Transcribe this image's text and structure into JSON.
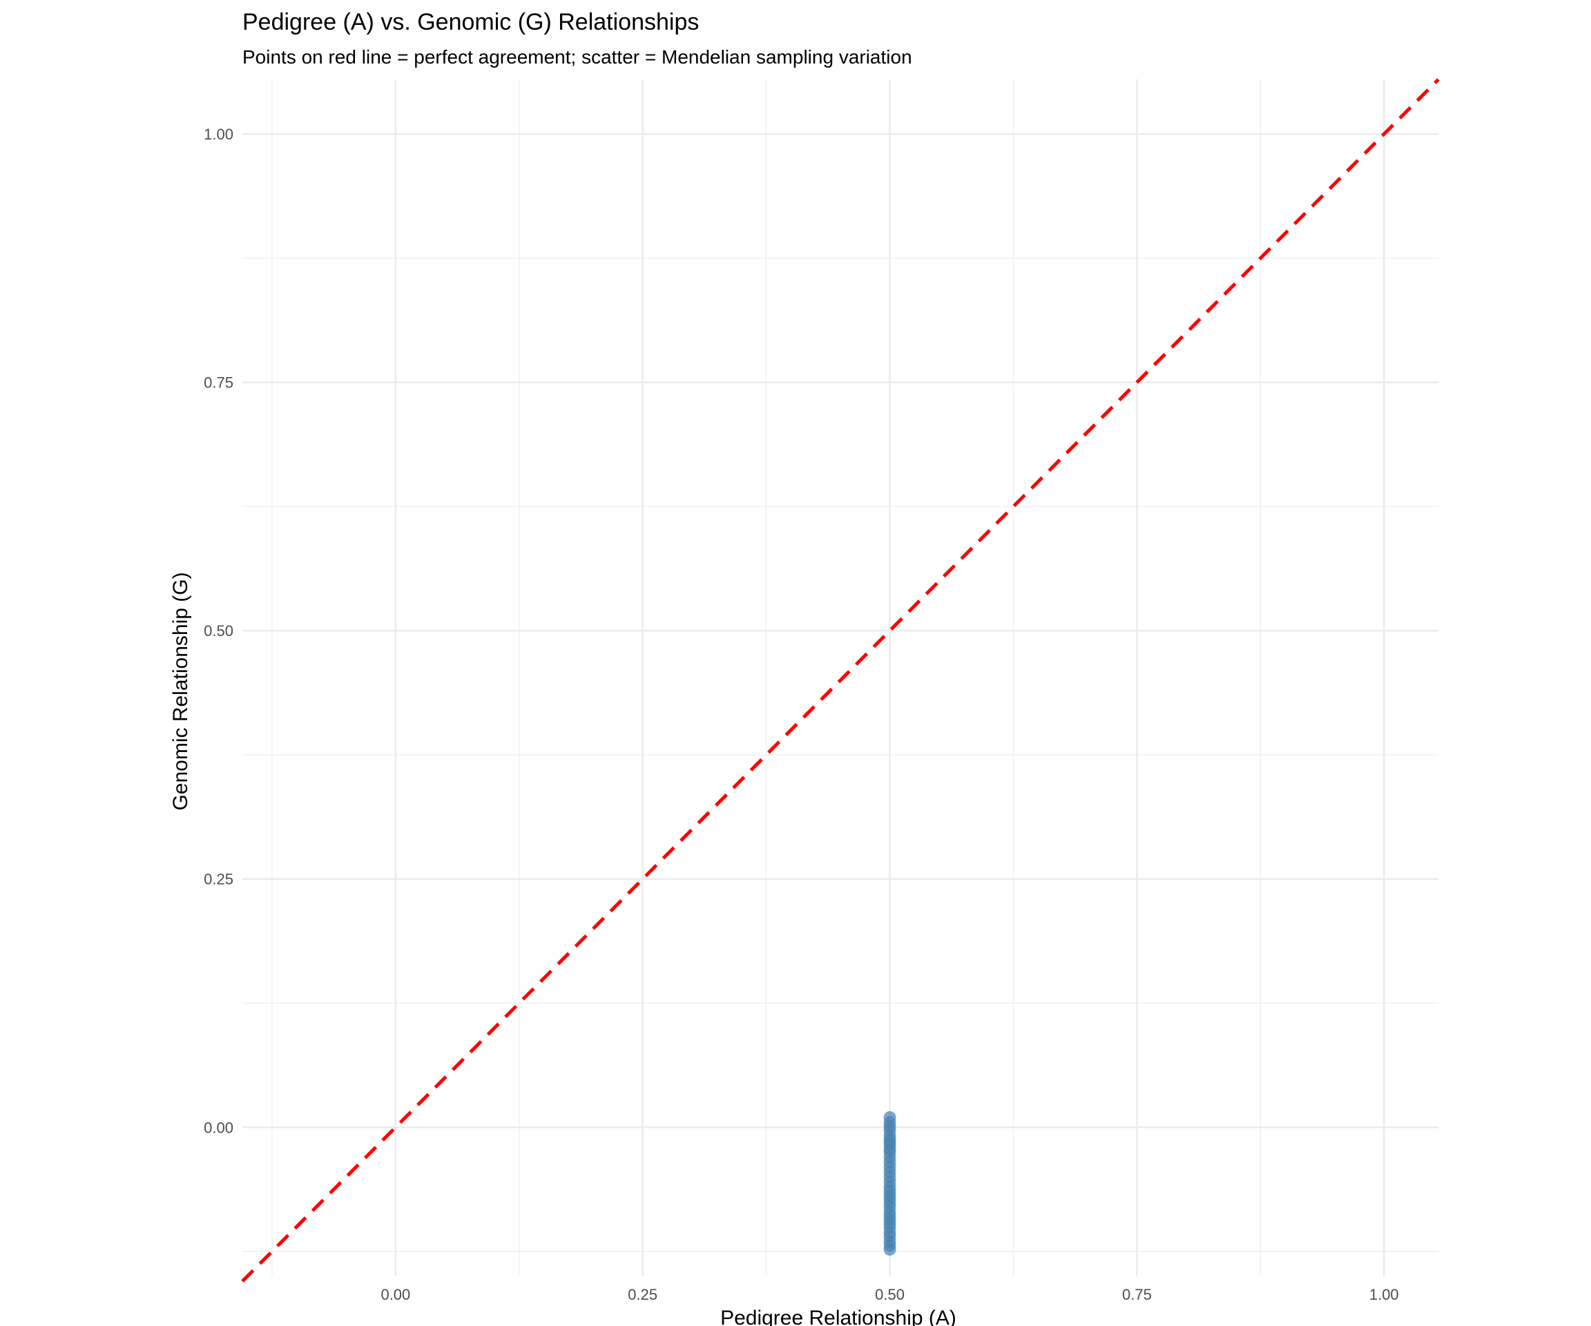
{
  "chart_data": {
    "type": "scatter",
    "title": "Pedigree (A) vs. Genomic (G) Relationships",
    "subtitle": "Points on red line = perfect agreement; scatter = Mendelian sampling variation",
    "xlabel": "Pedigree Relationship (A)",
    "ylabel": "Genomic Relationship (G)",
    "xlim": [
      -0.155,
      1.055
    ],
    "ylim": [
      -0.15,
      1.055
    ],
    "x_ticks": [
      0.0,
      0.25,
      0.5,
      0.75,
      1.0
    ],
    "x_tick_labels": [
      "0.00",
      "0.25",
      "0.50",
      "0.75",
      "1.00"
    ],
    "y_ticks": [
      0.0,
      0.25,
      0.5,
      0.75,
      1.0
    ],
    "y_tick_labels": [
      "0.00",
      "0.25",
      "0.50",
      "0.75",
      "1.00"
    ],
    "grid": true,
    "point_color": "#4682B4",
    "reference_line": {
      "slope": 1,
      "intercept": 0,
      "color": "#FF0000",
      "style": "dashed"
    },
    "points": [
      {
        "x": 0.5,
        "y": 0.01
      },
      {
        "x": 0.5,
        "y": 0.005
      },
      {
        "x": 0.5,
        "y": 0.001
      },
      {
        "x": 0.5,
        "y": -0.003
      },
      {
        "x": 0.5,
        "y": -0.008
      },
      {
        "x": 0.5,
        "y": -0.012
      },
      {
        "x": 0.5,
        "y": -0.015
      },
      {
        "x": 0.5,
        "y": -0.018
      },
      {
        "x": 0.5,
        "y": -0.022
      },
      {
        "x": 0.5,
        "y": -0.025
      },
      {
        "x": 0.5,
        "y": -0.03
      },
      {
        "x": 0.5,
        "y": -0.035
      },
      {
        "x": 0.5,
        "y": -0.04
      },
      {
        "x": 0.5,
        "y": -0.045
      },
      {
        "x": 0.5,
        "y": -0.05
      },
      {
        "x": 0.5,
        "y": -0.055
      },
      {
        "x": 0.5,
        "y": -0.06
      },
      {
        "x": 0.5,
        "y": -0.064
      },
      {
        "x": 0.5,
        "y": -0.068
      },
      {
        "x": 0.5,
        "y": -0.072
      },
      {
        "x": 0.5,
        "y": -0.076
      },
      {
        "x": 0.5,
        "y": -0.08
      },
      {
        "x": 0.5,
        "y": -0.085
      },
      {
        "x": 0.5,
        "y": -0.089
      },
      {
        "x": 0.5,
        "y": -0.093
      },
      {
        "x": 0.5,
        "y": -0.097
      },
      {
        "x": 0.5,
        "y": -0.101
      },
      {
        "x": 0.5,
        "y": -0.106
      },
      {
        "x": 0.5,
        "y": -0.11
      },
      {
        "x": 0.5,
        "y": -0.115
      },
      {
        "x": 0.5,
        "y": -0.119
      },
      {
        "x": 0.5,
        "y": -0.123
      }
    ]
  }
}
